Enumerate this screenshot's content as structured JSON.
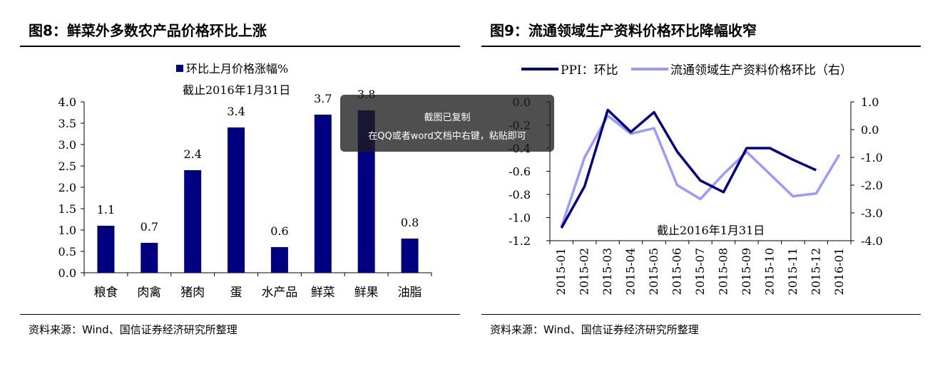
{
  "left": {
    "title": "图8：鲜菜外多数农产品价格环比上涨",
    "source": "资料来源：Wind、国信证券经济研究所整理",
    "chart_data": {
      "type": "bar",
      "legend": "环比上月价格涨幅%",
      "subtitle": "截止2016年1月31日",
      "categories": [
        "粮食",
        "肉禽",
        "猪肉",
        "蛋",
        "水产品",
        "鲜菜",
        "鲜果",
        "油脂"
      ],
      "values": [
        1.1,
        0.7,
        2.4,
        3.4,
        0.6,
        3.7,
        3.8,
        0.8
      ],
      "data_labels": [
        "1.1",
        "0.7",
        "2.4",
        "3.4",
        "0.6",
        "3.7",
        "3.8",
        "0.8"
      ],
      "ylim": [
        0,
        4.0
      ],
      "yticks": [
        "0.0",
        "0.5",
        "1.0",
        "1.5",
        "2.0",
        "2.5",
        "3.0",
        "3.5",
        "4.0"
      ],
      "bar_color": "#000080",
      "grid": false
    }
  },
  "right": {
    "title": "图9：流通领域生产资料价格环比降幅收窄",
    "source": "资料来源：Wind、国信证券经济研究所整理",
    "chart_data": {
      "type": "line",
      "annotation": "截止2016年1月31日",
      "x": [
        "2015-01",
        "2015-02",
        "2015-03",
        "2015-04",
        "2015-05",
        "2015-06",
        "2015-07",
        "2015-08",
        "2015-09",
        "2015-10",
        "2015-11",
        "2015-12",
        "2016-01"
      ],
      "series": [
        {
          "name": "PPI：环比",
          "axis": "left",
          "color": "#000080",
          "values": [
            -1.09,
            -0.73,
            -0.07,
            -0.26,
            -0.09,
            -0.43,
            -0.68,
            -0.78,
            -0.4,
            -0.4,
            -0.5,
            -0.59,
            null
          ]
        },
        {
          "name": "流通领域生产资料价格环比（右）",
          "axis": "right",
          "color": "#9999ff",
          "values": [
            -3.5,
            -1.0,
            0.5,
            -0.15,
            0.05,
            -2.0,
            -2.5,
            -1.6,
            -0.8,
            -1.6,
            -2.4,
            -2.3,
            -0.9
          ]
        }
      ],
      "ylim_left": [
        -1.2,
        0.0
      ],
      "yticks_left": [
        "0.0",
        "-0.2",
        "-0.4",
        "-0.6",
        "-0.8",
        "-1.0",
        "-1.2"
      ],
      "ylim_right": [
        -4.0,
        1.0
      ],
      "yticks_right": [
        "1.0",
        "0.0",
        "-1.0",
        "-2.0",
        "-3.0",
        "-4.0"
      ],
      "grid": false,
      "legend_position": "top"
    }
  },
  "toast": {
    "line1": "截图已复制",
    "line2": "在QQ或者word文档中右键，粘贴即可"
  }
}
